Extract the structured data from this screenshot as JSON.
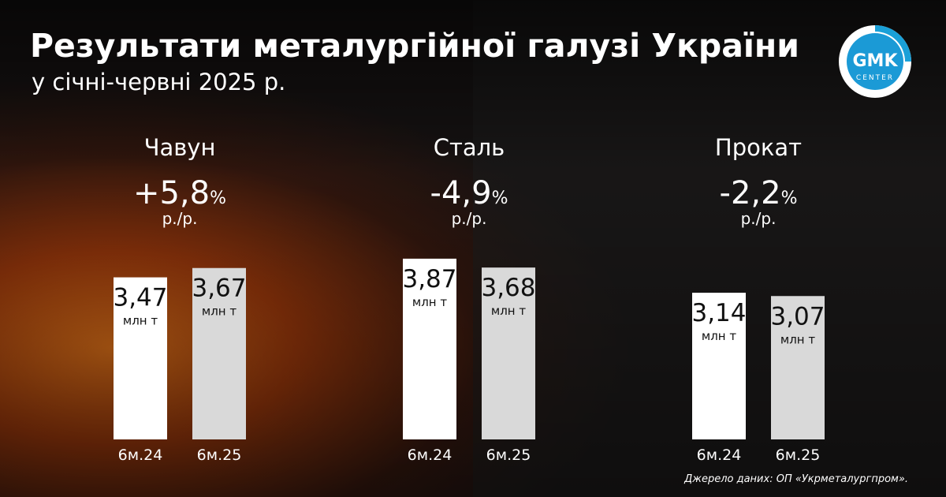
{
  "title": "Результати металургійної галузі України",
  "subtitle": "у січні-червні 2025 р.",
  "source": "Джерело даних: ОП «Укрметалургпром».",
  "logo": {
    "name": "GMK",
    "sub": "CENTER"
  },
  "chart_data": [
    {
      "type": "bar",
      "title": "Чавун",
      "change_label": "+5,8",
      "change_unit": "%",
      "change_note": "р./р.",
      "categories": [
        "6м.24",
        "6м.25"
      ],
      "values": [
        3.47,
        3.67
      ],
      "value_labels": [
        "3,47",
        "3,67"
      ],
      "unit": "млн т",
      "colors": [
        "#ffffff",
        "#d9d9d9"
      ]
    },
    {
      "type": "bar",
      "title": "Сталь",
      "change_label": "-4,9",
      "change_unit": "%",
      "change_note": "р./р.",
      "categories": [
        "6м.24",
        "6м.25"
      ],
      "values": [
        3.87,
        3.68
      ],
      "value_labels": [
        "3,87",
        "3,68"
      ],
      "unit": "млн т",
      "colors": [
        "#ffffff",
        "#d9d9d9"
      ]
    },
    {
      "type": "bar",
      "title": "Прокат",
      "change_label": "-2,2",
      "change_unit": "%",
      "change_note": "р./р.",
      "categories": [
        "6м.24",
        "6м.25"
      ],
      "values": [
        3.14,
        3.07
      ],
      "value_labels": [
        "3,14",
        "3,07"
      ],
      "unit": "млн т",
      "colors": [
        "#ffffff",
        "#d9d9d9"
      ]
    }
  ]
}
